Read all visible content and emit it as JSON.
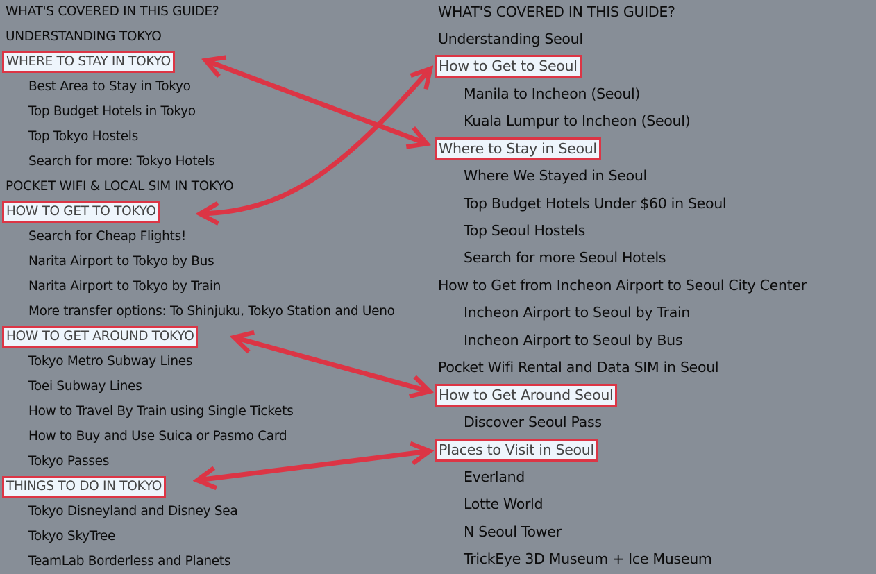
{
  "colors": {
    "background": "#878e97",
    "highlight_border": "#dc3545",
    "highlight_bg": "#eef5fc",
    "arrow": "#dc3545"
  },
  "tokyo_toc": {
    "items": [
      {
        "label": "WHAT'S COVERED IN THIS GUIDE?",
        "level": 0,
        "highlighted": false
      },
      {
        "label": "UNDERSTANDING TOKYO",
        "level": 0,
        "highlighted": false
      },
      {
        "label": "WHERE TO STAY IN TOKYO",
        "level": 0,
        "highlighted": true
      },
      {
        "label": "Best Area to Stay in Tokyo",
        "level": 1,
        "highlighted": false
      },
      {
        "label": "Top Budget Hotels in Tokyo",
        "level": 1,
        "highlighted": false
      },
      {
        "label": "Top Tokyo Hostels",
        "level": 1,
        "highlighted": false
      },
      {
        "label": "Search for more: Tokyo Hotels",
        "level": 1,
        "highlighted": false
      },
      {
        "label": "POCKET WIFI & LOCAL SIM IN TOKYO",
        "level": 0,
        "highlighted": false
      },
      {
        "label": "HOW TO GET TO TOKYO",
        "level": 0,
        "highlighted": true
      },
      {
        "label": "Search for Cheap Flights!",
        "level": 1,
        "highlighted": false
      },
      {
        "label": "Narita Airport to Tokyo by Bus",
        "level": 1,
        "highlighted": false
      },
      {
        "label": "Narita Airport to Tokyo by Train",
        "level": 1,
        "highlighted": false
      },
      {
        "label": "More transfer options: To Shinjuku, Tokyo Station and Ueno",
        "level": 1,
        "highlighted": false
      },
      {
        "label": "HOW TO GET AROUND TOKYO",
        "level": 0,
        "highlighted": true
      },
      {
        "label": "Tokyo Metro Subway Lines",
        "level": 1,
        "highlighted": false
      },
      {
        "label": "Toei Subway Lines",
        "level": 1,
        "highlighted": false
      },
      {
        "label": "How to Travel By Train using Single Tickets",
        "level": 1,
        "highlighted": false
      },
      {
        "label": "How to Buy and Use Suica or Pasmo Card",
        "level": 1,
        "highlighted": false
      },
      {
        "label": "Tokyo Passes",
        "level": 1,
        "highlighted": false
      },
      {
        "label": "THINGS TO DO IN TOKYO",
        "level": 0,
        "highlighted": true
      },
      {
        "label": "Tokyo Disneyland and Disney Sea",
        "level": 1,
        "highlighted": false
      },
      {
        "label": "Tokyo SkyTree",
        "level": 1,
        "highlighted": false
      },
      {
        "label": "TeamLab Borderless and Planets",
        "level": 1,
        "highlighted": false
      }
    ]
  },
  "seoul_toc": {
    "items": [
      {
        "label": "WHAT'S COVERED IN THIS GUIDE?",
        "level": 0,
        "highlighted": false
      },
      {
        "label": "Understanding Seoul",
        "level": 0,
        "highlighted": false
      },
      {
        "label": "How to Get to Seoul",
        "level": 0,
        "highlighted": true
      },
      {
        "label": "Manila to Incheon (Seoul)",
        "level": 1,
        "highlighted": false
      },
      {
        "label": "Kuala Lumpur to Incheon (Seoul)",
        "level": 1,
        "highlighted": false
      },
      {
        "label": "Where to Stay in Seoul",
        "level": 0,
        "highlighted": true
      },
      {
        "label": "Where We Stayed in Seoul",
        "level": 1,
        "highlighted": false
      },
      {
        "label": "Top Budget Hotels Under $60 in Seoul",
        "level": 1,
        "highlighted": false
      },
      {
        "label": "Top Seoul Hostels",
        "level": 1,
        "highlighted": false
      },
      {
        "label": "Search for more Seoul Hotels",
        "level": 1,
        "highlighted": false
      },
      {
        "label": "How to Get from Incheon Airport to Seoul City Center",
        "level": 0,
        "highlighted": false
      },
      {
        "label": "Incheon Airport to Seoul by Train",
        "level": 1,
        "highlighted": false
      },
      {
        "label": "Incheon Airport to Seoul by Bus",
        "level": 1,
        "highlighted": false
      },
      {
        "label": "Pocket Wifi Rental and Data SIM in Seoul",
        "level": 0,
        "highlighted": false
      },
      {
        "label": "How to Get Around Seoul",
        "level": 0,
        "highlighted": true
      },
      {
        "label": "Discover Seoul Pass",
        "level": 1,
        "highlighted": false
      },
      {
        "label": "Places to Visit in Seoul",
        "level": 0,
        "highlighted": true
      },
      {
        "label": "Everland",
        "level": 1,
        "highlighted": false
      },
      {
        "label": "Lotte World",
        "level": 1,
        "highlighted": false
      },
      {
        "label": "N Seoul Tower",
        "level": 1,
        "highlighted": false
      },
      {
        "label": "TrickEye 3D Museum + Ice Museum",
        "level": 1,
        "highlighted": false
      }
    ]
  }
}
